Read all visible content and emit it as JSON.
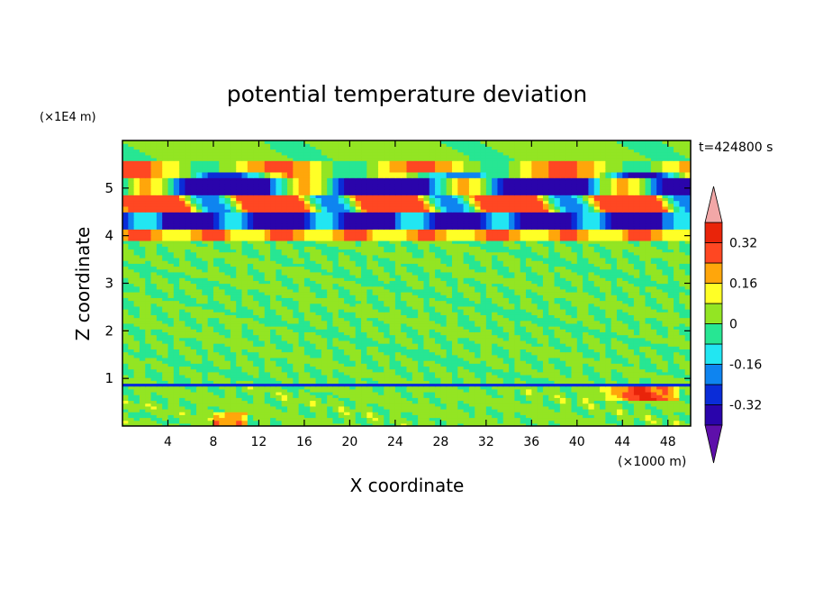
{
  "chart_data": {
    "type": "heatmap",
    "title": "potential temperature deviation",
    "xlabel": "X coordinate",
    "ylabel": "Z coordinate",
    "x_unit": "(×1000 m)",
    "y_unit": "(×1E4 m)",
    "time_label": "t=424800 s",
    "xlim": [
      0,
      50
    ],
    "ylim": [
      0,
      6
    ],
    "x_ticks": [
      4,
      8,
      12,
      16,
      20,
      24,
      28,
      32,
      36,
      40,
      44,
      48
    ],
    "y_ticks": [
      1,
      2,
      3,
      4,
      5
    ],
    "colorbar": {
      "levels": [
        -0.4,
        -0.32,
        -0.24,
        -0.16,
        -0.08,
        0,
        0.08,
        0.16,
        0.24,
        0.32,
        0.4
      ],
      "colors": [
        "#5e0faa",
        "#2a04ab",
        "#0a2cd8",
        "#0e84f0",
        "#22e6f2",
        "#27e693",
        "#93e523",
        "#ffff26",
        "#ffa60b",
        "#ff4722",
        "#e9240a",
        "#f2a7a7"
      ],
      "tick_labels": [
        "0.32",
        "0.16",
        "0",
        "-0.16",
        "-0.32"
      ],
      "tick_values": [
        0.32,
        0.16,
        0,
        -0.16,
        -0.32
      ],
      "extend": "both"
    },
    "bands": [
      {
        "z": [
          0.0,
          0.8
        ],
        "value": 0.02,
        "note": "lower layer, mixed green"
      },
      {
        "z": [
          0.85,
          0.92
        ],
        "value": -0.3,
        "note": "thin inversion line"
      },
      {
        "z": [
          0.92,
          3.9
        ],
        "value": 0.01,
        "note": "green / teal mottled"
      },
      {
        "z": [
          3.9,
          4.1
        ],
        "value": 0.2
      },
      {
        "z": [
          4.1,
          4.5
        ],
        "value": -0.35
      },
      {
        "z": [
          4.5,
          4.9
        ],
        "value": 0.3
      },
      {
        "z": [
          4.9,
          5.2
        ],
        "value": -0.38
      },
      {
        "z": [
          5.2,
          5.6
        ],
        "value": 0.12
      },
      {
        "z": [
          5.6,
          6.0
        ],
        "value": 0.04
      }
    ]
  }
}
